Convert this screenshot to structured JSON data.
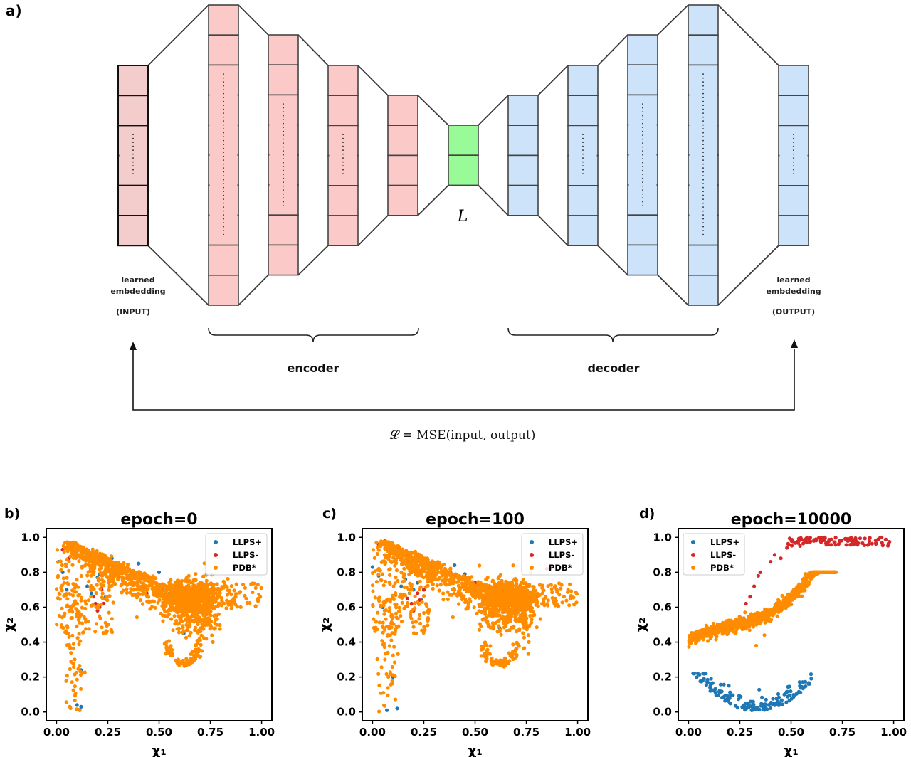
{
  "figure": {
    "panel_a_label": "a)",
    "input_caption": {
      "line1": "learned",
      "line2": "embdedding",
      "line3": "(INPUT)"
    },
    "output_caption": {
      "line1": "learned",
      "line2": "embdedding",
      "line3": "(OUTPUT)"
    },
    "encoder_label": "encoder",
    "decoder_label": "decoder",
    "latent_label": "L",
    "loss_equation": "𝓛 = MSE(input, output)",
    "colors": {
      "input": "#f3cccc",
      "encoder": "#fcc9c9",
      "latent": "#98fb98",
      "decoder": "#cde3fa",
      "stroke": "#3c3c3c",
      "llps_plus": "#1f77b4",
      "llps_minus": "#d62728",
      "pdb": "#ff8c00"
    }
  },
  "chart_data": [
    {
      "panel": "b)",
      "type": "scatter",
      "title": "epoch=0",
      "xlabel": "χ₁",
      "ylabel": "χ₂",
      "xlim": [
        -0.05,
        1.05
      ],
      "ylim": [
        -0.05,
        1.05
      ],
      "xticks": [
        "0.00",
        "0.25",
        "0.50",
        "0.75",
        "1.00"
      ],
      "yticks": [
        "0.0",
        "0.2",
        "0.4",
        "0.6",
        "0.8",
        "1.0"
      ],
      "legend": [
        "LLPS+",
        "LLPS-",
        "PDB*"
      ],
      "legend_position": "top-right",
      "series": [
        {
          "name": "LLPS+",
          "color": "#1f77b4",
          "points": [
            [
              0.01,
              0.86
            ],
            [
              0.03,
              0.8
            ],
            [
              0.05,
              0.7
            ],
            [
              0.08,
              0.95
            ],
            [
              0.1,
              0.92
            ],
            [
              0.1,
              0.04
            ],
            [
              0.12,
              0.03
            ],
            [
              0.12,
              0.24
            ],
            [
              0.15,
              0.72
            ],
            [
              0.17,
              0.68
            ],
            [
              0.18,
              0.82
            ],
            [
              0.2,
              0.77
            ],
            [
              0.21,
              0.79
            ],
            [
              0.22,
              0.72
            ],
            [
              0.24,
              0.66
            ],
            [
              0.25,
              0.84
            ],
            [
              0.27,
              0.88
            ],
            [
              0.29,
              0.81
            ],
            [
              0.31,
              0.83
            ],
            [
              0.35,
              0.78
            ],
            [
              0.38,
              0.8
            ],
            [
              0.4,
              0.85
            ],
            [
              0.45,
              0.75
            ],
            [
              0.5,
              0.8
            ],
            [
              0.55,
              0.68
            ],
            [
              0.62,
              0.45
            ]
          ]
        },
        {
          "name": "LLPS-",
          "color": "#d62728",
          "points": [
            [
              0.03,
              0.93
            ],
            [
              0.06,
              0.88
            ],
            [
              0.18,
              0.66
            ],
            [
              0.19,
              0.62
            ],
            [
              0.2,
              0.58
            ],
            [
              0.21,
              0.6
            ],
            [
              0.22,
              0.7
            ],
            [
              0.23,
              0.62
            ],
            [
              0.24,
              0.65
            ],
            [
              0.26,
              0.72
            ],
            [
              0.28,
              0.84
            ],
            [
              0.3,
              0.8
            ],
            [
              0.36,
              0.78
            ],
            [
              0.44,
              0.68
            ],
            [
              0.48,
              0.74
            ],
            [
              0.52,
              0.7
            ],
            [
              0.58,
              0.66
            ]
          ]
        },
        {
          "name": "PDB*",
          "color": "#ff8c00",
          "points": []
        }
      ]
    },
    {
      "panel": "c)",
      "type": "scatter",
      "title": "epoch=100",
      "xlabel": "χ₁",
      "ylabel": "χ₂",
      "xlim": [
        -0.05,
        1.05
      ],
      "ylim": [
        -0.05,
        1.05
      ],
      "xticks": [
        "0.00",
        "0.25",
        "0.50",
        "0.75",
        "1.00"
      ],
      "yticks": [
        "0.0",
        "0.2",
        "0.4",
        "0.6",
        "0.8",
        "1.0"
      ],
      "legend": [
        "LLPS+",
        "LLPS-",
        "PDB*"
      ],
      "legend_position": "top-right",
      "series": [
        {
          "name": "LLPS+",
          "color": "#1f77b4",
          "points": [
            [
              0.0,
              0.83
            ],
            [
              0.03,
              0.78
            ],
            [
              0.05,
              0.6
            ],
            [
              0.06,
              0.98
            ],
            [
              0.07,
              0.01
            ],
            [
              0.1,
              0.2
            ],
            [
              0.12,
              0.02
            ],
            [
              0.14,
              0.72
            ],
            [
              0.16,
              0.76
            ],
            [
              0.18,
              0.68
            ],
            [
              0.19,
              0.8
            ],
            [
              0.2,
              0.7
            ],
            [
              0.22,
              0.74
            ],
            [
              0.24,
              0.64
            ],
            [
              0.26,
              0.86
            ],
            [
              0.28,
              0.82
            ],
            [
              0.3,
              0.8
            ],
            [
              0.4,
              0.84
            ],
            [
              0.45,
              0.79
            ],
            [
              0.55,
              0.72
            ],
            [
              0.62,
              0.48
            ]
          ]
        },
        {
          "name": "LLPS-",
          "color": "#d62728",
          "points": [
            [
              0.03,
              0.96
            ],
            [
              0.08,
              0.9
            ],
            [
              0.17,
              0.65
            ],
            [
              0.19,
              0.62
            ],
            [
              0.2,
              0.58
            ],
            [
              0.22,
              0.68
            ],
            [
              0.23,
              0.64
            ],
            [
              0.25,
              0.7
            ],
            [
              0.27,
              0.78
            ],
            [
              0.3,
              0.76
            ],
            [
              0.38,
              0.8
            ],
            [
              0.46,
              0.7
            ],
            [
              0.5,
              0.74
            ],
            [
              0.56,
              0.69
            ],
            [
              0.85,
              0.82
            ]
          ]
        },
        {
          "name": "PDB*",
          "color": "#ff8c00",
          "points": []
        }
      ]
    },
    {
      "panel": "d)",
      "type": "scatter",
      "title": "epoch=10000",
      "xlabel": "χ₁",
      "ylabel": "χ₂",
      "xlim": [
        -0.05,
        1.05
      ],
      "ylim": [
        -0.05,
        1.05
      ],
      "xticks": [
        "0.00",
        "0.25",
        "0.50",
        "0.75",
        "1.00"
      ],
      "yticks": [
        "0.0",
        "0.2",
        "0.4",
        "0.6",
        "0.8",
        "1.0"
      ],
      "legend": [
        "LLPS+",
        "LLPS-",
        "PDB*"
      ],
      "legend_position": "top-left",
      "series": [
        {
          "name": "LLPS+",
          "color": "#1f77b4",
          "points": []
        },
        {
          "name": "LLPS-",
          "color": "#d62728",
          "points": [
            [
              0.28,
              0.62
            ],
            [
              0.3,
              0.66
            ],
            [
              0.32,
              0.72
            ],
            [
              0.34,
              0.78
            ],
            [
              0.35,
              0.8
            ],
            [
              0.4,
              0.86
            ],
            [
              0.42,
              0.9
            ],
            [
              0.45,
              0.88
            ],
            [
              0.48,
              0.94
            ]
          ]
        },
        {
          "name": "PDB*",
          "color": "#ff8c00",
          "points": [
            [
              0.33,
              0.38
            ],
            [
              0.37,
              0.44
            ],
            [
              0.4,
              0.52
            ]
          ]
        }
      ]
    }
  ]
}
